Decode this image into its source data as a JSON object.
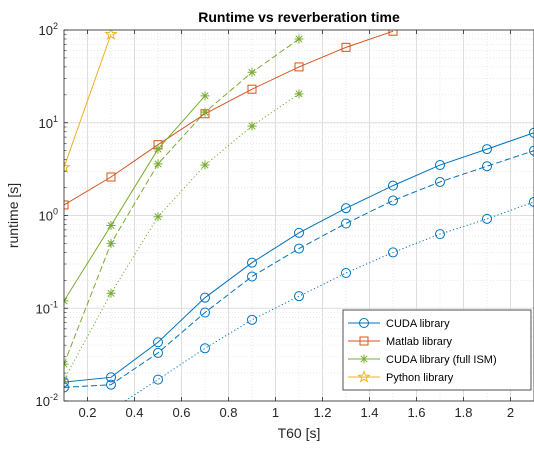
{
  "chart_data": {
    "type": "line",
    "title": "Runtime vs reverberation time",
    "xlabel": "T60 [s]",
    "ylabel": "runtime [s]",
    "xlim": [
      0.1,
      2.1
    ],
    "ylim": [
      0.01,
      100
    ],
    "yscale": "log",
    "grid": true,
    "minor_grid": true,
    "legend_position": "bottom-right",
    "x_ticks": [
      {
        "value": 0.2,
        "label": "0.2"
      },
      {
        "value": 0.4,
        "label": "0.4"
      },
      {
        "value": 0.6,
        "label": "0.6"
      },
      {
        "value": 0.8,
        "label": "0.8"
      },
      {
        "value": 1.0,
        "label": "1"
      },
      {
        "value": 1.2,
        "label": "1.2"
      },
      {
        "value": 1.4,
        "label": "1.4"
      },
      {
        "value": 1.6,
        "label": "1.6"
      },
      {
        "value": 1.8,
        "label": "1.8"
      },
      {
        "value": 2.0,
        "label": "2"
      }
    ],
    "y_ticks": [
      {
        "value": 0.01,
        "base": "10",
        "exp": "-2"
      },
      {
        "value": 0.1,
        "base": "10",
        "exp": "-1"
      },
      {
        "value": 1,
        "base": "10",
        "exp": "0"
      },
      {
        "value": 10,
        "base": "10",
        "exp": "1"
      },
      {
        "value": 100,
        "base": "10",
        "exp": "2"
      }
    ],
    "legend": [
      {
        "label": "CUDA library",
        "color": "#0072BD",
        "marker": "circle"
      },
      {
        "label": "Matlab library",
        "color": "#D95319",
        "marker": "square"
      },
      {
        "label": "CUDA library (full ISM)",
        "color": "#77AC30",
        "marker": "asterisk"
      },
      {
        "label": "Python library",
        "color": "#EDB120",
        "marker": "pentagram"
      }
    ],
    "series": [
      {
        "color": "#0072BD",
        "marker": "circle",
        "dash": "solid",
        "x": [
          0.1,
          0.3,
          0.5,
          0.7,
          0.9,
          1.1,
          1.3,
          1.5,
          1.7,
          1.9,
          2.1
        ],
        "y": [
          0.016,
          0.018,
          0.043,
          0.13,
          0.31,
          0.65,
          1.2,
          2.1,
          3.5,
          5.2,
          7.8
        ]
      },
      {
        "color": "#0072BD",
        "marker": "circle",
        "dash": "dashed",
        "x": [
          0.1,
          0.3,
          0.5,
          0.7,
          0.9,
          1.1,
          1.3,
          1.5,
          1.7,
          1.9,
          2.1
        ],
        "y": [
          0.014,
          0.015,
          0.033,
          0.09,
          0.22,
          0.44,
          0.82,
          1.45,
          2.3,
          3.4,
          5.0
        ]
      },
      {
        "color": "#0072BD",
        "marker": "circle",
        "dash": "dotted",
        "x": [
          0.1,
          0.3,
          0.5,
          0.7,
          0.9,
          1.1,
          1.3,
          1.5,
          1.7,
          1.9,
          2.1
        ],
        "y": [
          0.0065,
          0.008,
          0.017,
          0.037,
          0.075,
          0.135,
          0.24,
          0.4,
          0.63,
          0.92,
          1.4
        ]
      },
      {
        "color": "#D95319",
        "marker": "square",
        "dash": "solid",
        "x": [
          0.1,
          0.3,
          0.5,
          0.7,
          0.9,
          1.1,
          1.3,
          1.5
        ],
        "y": [
          1.3,
          2.6,
          5.8,
          12.5,
          23,
          40,
          65,
          97
        ]
      },
      {
        "color": "#77AC30",
        "marker": "asterisk",
        "dash": "solid",
        "x": [
          0.1,
          0.3,
          0.5,
          0.7
        ],
        "y": [
          0.12,
          0.78,
          5.2,
          19.5
        ]
      },
      {
        "color": "#77AC30",
        "marker": "asterisk",
        "dash": "dashed",
        "x": [
          0.1,
          0.3,
          0.5,
          0.7,
          0.9,
          1.1
        ],
        "y": [
          0.025,
          0.5,
          3.6,
          13,
          35,
          80
        ]
      },
      {
        "color": "#77AC30",
        "marker": "asterisk",
        "dash": "dotted",
        "x": [
          0.1,
          0.3,
          0.5,
          0.7,
          0.9,
          1.1
        ],
        "y": [
          0.017,
          0.145,
          0.97,
          3.5,
          9.2,
          20.5
        ]
      },
      {
        "color": "#EDB120",
        "marker": "pentagram",
        "dash": "solid",
        "x": [
          0.1,
          0.3
        ],
        "y": [
          3.3,
          90
        ]
      }
    ]
  }
}
